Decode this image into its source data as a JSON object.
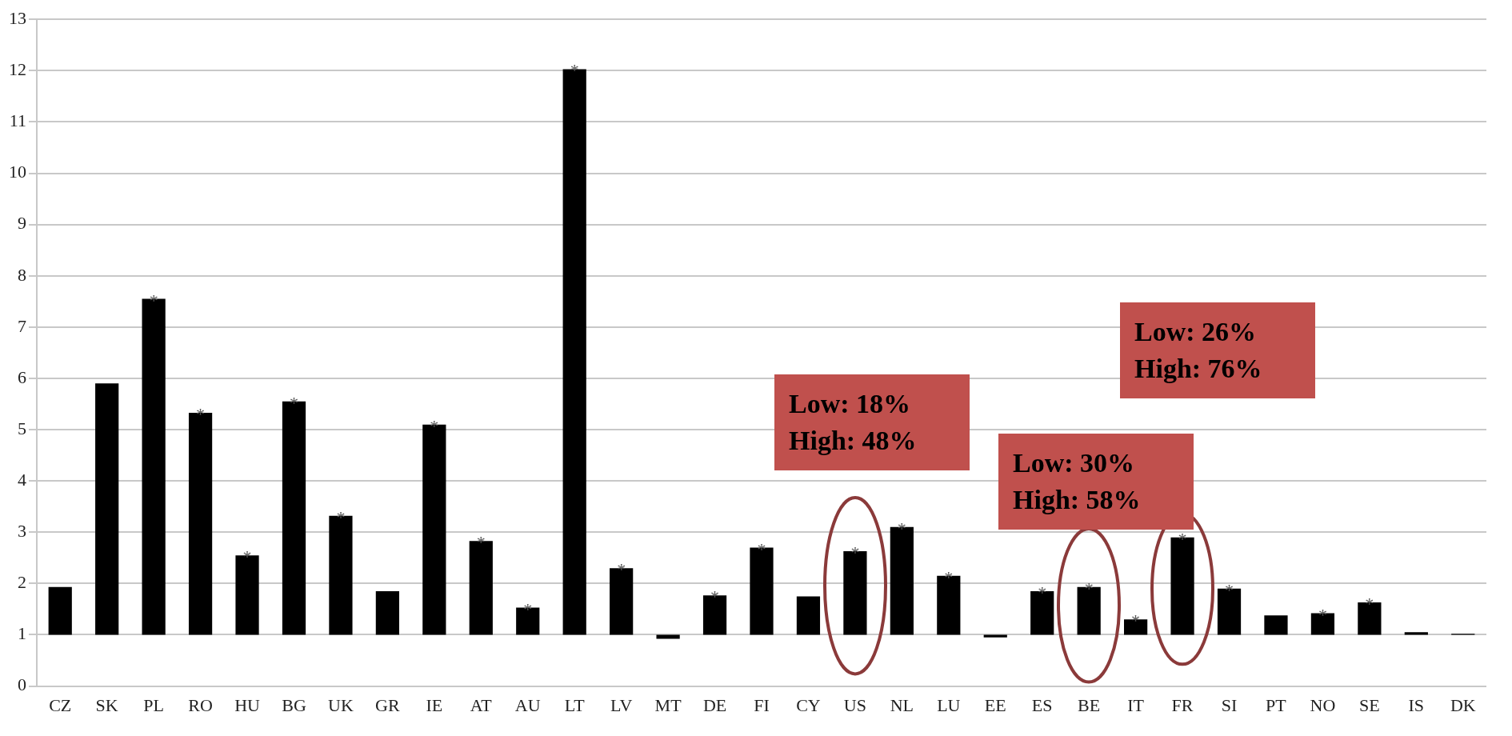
{
  "chart_data": {
    "type": "bar",
    "categories": [
      "CZ",
      "SK",
      "PL",
      "RO",
      "HU",
      "BG",
      "UK",
      "GR",
      "IE",
      "AT",
      "AU",
      "LT",
      "LV",
      "MT",
      "DE",
      "FI",
      "CY",
      "US",
      "NL",
      "LU",
      "EE",
      "ES",
      "BE",
      "IT",
      "FR",
      "SI",
      "PT",
      "NO",
      "SE",
      "IS",
      "DK"
    ],
    "base": [
      1,
      1,
      1,
      1,
      1,
      1,
      1,
      1,
      1,
      1,
      1,
      1,
      1,
      1,
      1,
      1,
      1,
      1,
      1,
      1,
      1,
      1,
      1,
      1,
      1,
      1,
      1,
      1,
      1,
      1,
      1
    ],
    "values": [
      0.93,
      4.9,
      6.55,
      4.33,
      1.55,
      4.55,
      2.32,
      0.85,
      4.1,
      1.83,
      0.53,
      11.03,
      1.3,
      -0.08,
      0.77,
      1.7,
      0.75,
      1.63,
      2.1,
      1.15,
      -0.05,
      0.85,
      0.93,
      0.3,
      1.9,
      0.9,
      0.38,
      0.42,
      0.63,
      0.05,
      0.02
    ],
    "value_labels": [
      null,
      null,
      "*",
      "*",
      "*",
      "*",
      "*",
      null,
      "*",
      "*",
      "*",
      "*",
      "*",
      null,
      "*",
      "*",
      null,
      "*",
      "*",
      "*",
      null,
      "*",
      "*",
      "*",
      "*",
      "*",
      null,
      "*",
      "*",
      null,
      null
    ],
    "color": "#000000",
    "ylim": [
      0,
      13
    ],
    "yticks": [
      0,
      1,
      2,
      3,
      4,
      5,
      6,
      7,
      8,
      9,
      10,
      11,
      12,
      13
    ],
    "grid": "y",
    "annotations": [
      "Low: 18%\nHigh: 48%",
      "Low: 30%\nHigh: 58%",
      "Low: 26%\nHigh: 76%"
    ]
  }
}
